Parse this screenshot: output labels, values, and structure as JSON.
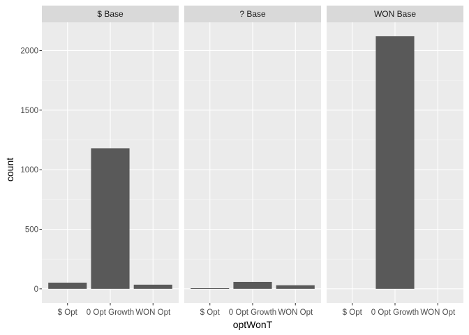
{
  "chart_data": {
    "type": "bar",
    "xlabel": "optWonT",
    "ylabel": "count",
    "ylim": [
      -118,
      2237
    ],
    "yticks": [
      0,
      500,
      1000,
      1500,
      2000
    ],
    "ytick_labels": [
      "0",
      "500",
      "1000",
      "1500",
      "2000"
    ],
    "categories": [
      "$ Opt",
      "0 Opt Growth",
      "WON Opt"
    ],
    "grid": true,
    "facets": [
      {
        "label": "$ Base",
        "values": [
          52,
          1180,
          35
        ]
      },
      {
        "label": "? Base",
        "values": [
          5,
          58,
          30
        ]
      },
      {
        "label": "WON Base",
        "values": [
          0,
          2120,
          0
        ]
      }
    ],
    "colors": {
      "bar": "#595959",
      "panel_bg": "#ebebeb",
      "strip_bg": "#d9d9d9",
      "grid": "#ffffff"
    }
  }
}
